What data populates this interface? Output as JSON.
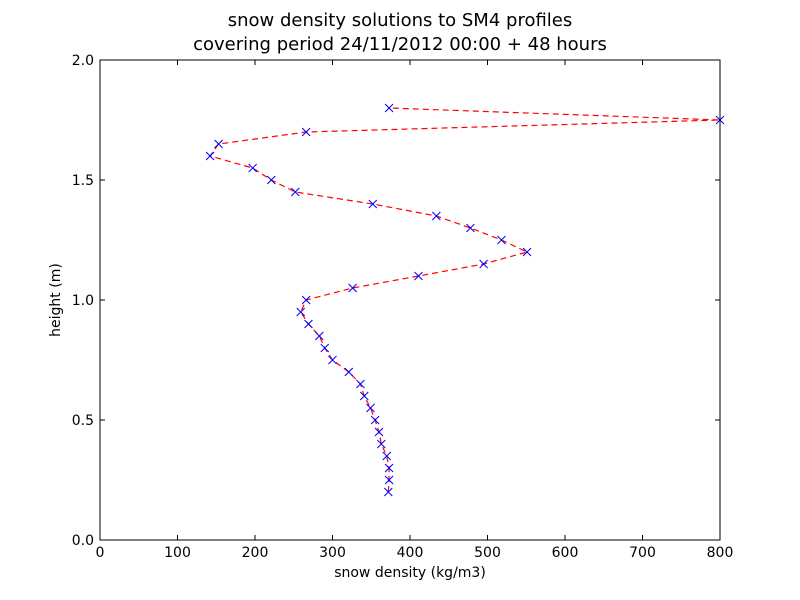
{
  "chart_data": {
    "type": "line",
    "title": "snow density solutions to SM4 profiles",
    "subtitle": "covering period 24/11/2012 00:00 + 48 hours",
    "xlabel": "snow density (kg/m3)",
    "ylabel": "height (m)",
    "xlim": [
      0,
      800
    ],
    "ylim": [
      0.0,
      2.0
    ],
    "xticks": [
      "0",
      "100",
      "200",
      "300",
      "400",
      "500",
      "600",
      "700",
      "800"
    ],
    "yticks": [
      "0.0",
      "0.5",
      "1.0",
      "1.5",
      "2.0"
    ],
    "grid": false,
    "legend": false,
    "series": [
      {
        "line_color": "#ff0000",
        "line_style": "dashed",
        "marker": "x",
        "marker_color": "#0000ff",
        "points": [
          {
            "x": 372,
            "y": 0.2
          },
          {
            "x": 373,
            "y": 0.25
          },
          {
            "x": 373,
            "y": 0.3
          },
          {
            "x": 370,
            "y": 0.35
          },
          {
            "x": 363,
            "y": 0.4
          },
          {
            "x": 360,
            "y": 0.45
          },
          {
            "x": 355,
            "y": 0.5
          },
          {
            "x": 349,
            "y": 0.55
          },
          {
            "x": 341,
            "y": 0.6
          },
          {
            "x": 336,
            "y": 0.65
          },
          {
            "x": 321,
            "y": 0.7
          },
          {
            "x": 300,
            "y": 0.75
          },
          {
            "x": 290,
            "y": 0.8
          },
          {
            "x": 283,
            "y": 0.85
          },
          {
            "x": 269,
            "y": 0.9
          },
          {
            "x": 259,
            "y": 0.95
          },
          {
            "x": 266,
            "y": 1.0
          },
          {
            "x": 326,
            "y": 1.05
          },
          {
            "x": 411,
            "y": 1.1
          },
          {
            "x": 495,
            "y": 1.15
          },
          {
            "x": 551,
            "y": 1.2
          },
          {
            "x": 518,
            "y": 1.25
          },
          {
            "x": 478,
            "y": 1.3
          },
          {
            "x": 434,
            "y": 1.35
          },
          {
            "x": 352,
            "y": 1.4
          },
          {
            "x": 252,
            "y": 1.45
          },
          {
            "x": 221,
            "y": 1.5
          },
          {
            "x": 197,
            "y": 1.55
          },
          {
            "x": 142,
            "y": 1.6
          },
          {
            "x": 153,
            "y": 1.65
          },
          {
            "x": 266,
            "y": 1.7
          },
          {
            "x": 800,
            "y": 1.75
          },
          {
            "x": 373,
            "y": 1.8
          }
        ]
      }
    ]
  }
}
